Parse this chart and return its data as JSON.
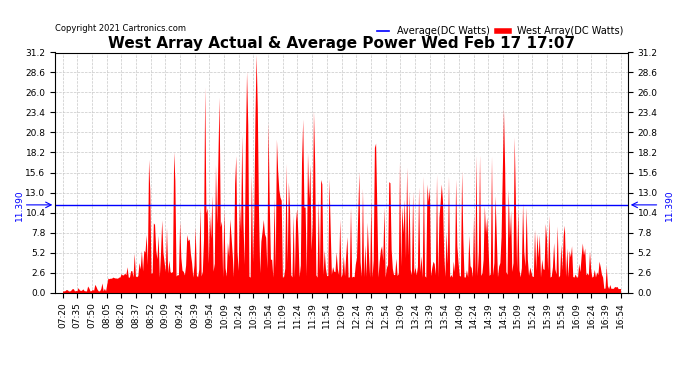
{
  "title": "West Array Actual & Average Power Wed Feb 17 17:07",
  "copyright": "Copyright 2021 Cartronics.com",
  "legend_avg": "Average(DC Watts)",
  "legend_west": "West Array(DC Watts)",
  "avg_value": 11.39,
  "avg_label": "11.390",
  "ymin": 0.0,
  "ymax": 31.2,
  "yticks": [
    0.0,
    2.6,
    5.2,
    7.8,
    10.4,
    13.0,
    15.6,
    18.2,
    20.8,
    23.4,
    26.0,
    28.6,
    31.2
  ],
  "color_red": "#ff0000",
  "color_blue": "#0000ff",
  "color_bg": "#ffffff",
  "grid_color": "#c8c8c8",
  "title_fontsize": 11,
  "tick_fontsize": 6.5,
  "x_labels": [
    "07:20",
    "07:35",
    "07:50",
    "08:05",
    "08:20",
    "08:37",
    "08:52",
    "09:09",
    "09:24",
    "09:39",
    "09:54",
    "10:09",
    "10:24",
    "10:39",
    "10:54",
    "11:09",
    "11:24",
    "11:39",
    "11:54",
    "12:09",
    "12:24",
    "12:39",
    "12:54",
    "13:09",
    "13:24",
    "13:39",
    "13:54",
    "14:09",
    "14:24",
    "14:39",
    "14:54",
    "15:09",
    "15:24",
    "15:39",
    "15:54",
    "16:09",
    "16:24",
    "16:39",
    "16:54"
  ]
}
